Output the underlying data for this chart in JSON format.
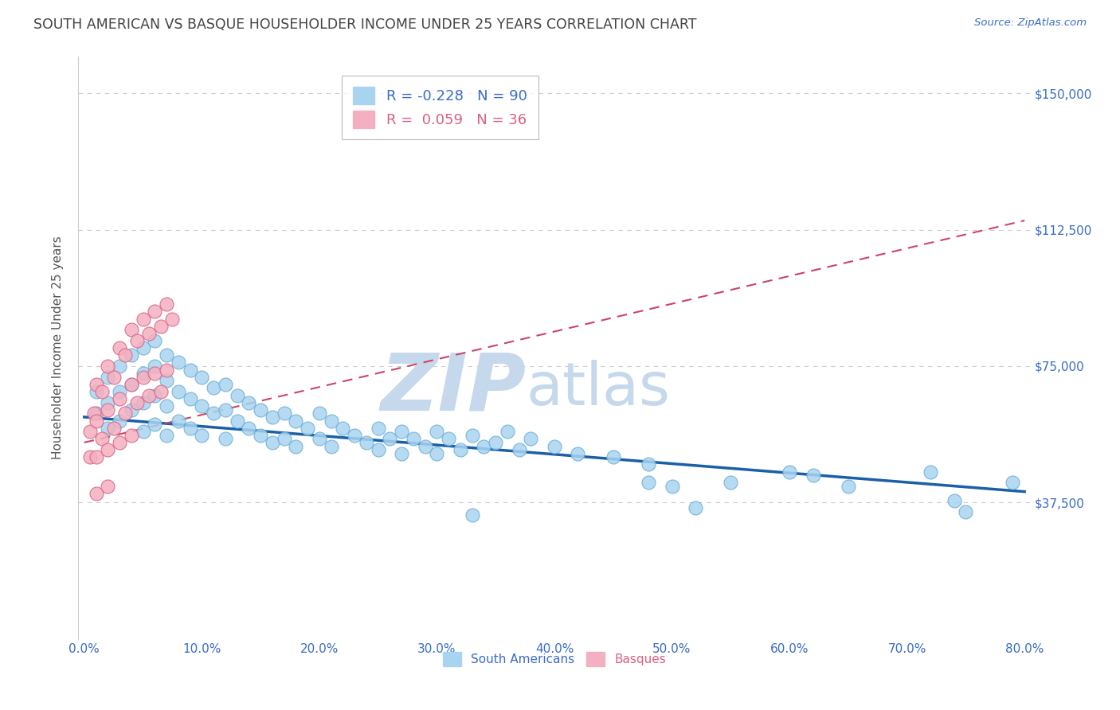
{
  "title": "SOUTH AMERICAN VS BASQUE HOUSEHOLDER INCOME UNDER 25 YEARS CORRELATION CHART",
  "source": "Source: ZipAtlas.com",
  "xlabel": "",
  "ylabel": "Householder Income Under 25 years",
  "xlim": [
    -0.005,
    0.805
  ],
  "ylim": [
    0,
    160000
  ],
  "yticks": [
    0,
    37500,
    75000,
    112500,
    150000
  ],
  "ytick_labels": [
    "",
    "$37,500",
    "$75,000",
    "$112,500",
    "$150,000"
  ],
  "xticks": [
    0.0,
    0.1,
    0.2,
    0.3,
    0.4,
    0.5,
    0.6,
    0.7,
    0.8
  ],
  "xtick_labels": [
    "0.0%",
    "10.0%",
    "20.0%",
    "30.0%",
    "40.0%",
    "50.0%",
    "60.0%",
    "70.0%",
    "80.0%"
  ],
  "south_american_color": "#a8d4f0",
  "south_american_edge": "#6aaed6",
  "basque_color": "#f4afc0",
  "basque_edge": "#d96080",
  "trend_sa_color": "#1a5fa8",
  "trend_basque_color": "#cc4466",
  "legend_sa_label": "R = -0.228   N = 90",
  "legend_basque_label": "R =  0.059   N = 36",
  "watermark": "ZIPatlas",
  "watermark_color": "#c5d8ec",
  "title_color": "#444444",
  "axis_label_color": "#555555",
  "tick_label_color": "#3a6cc8",
  "background_color": "#ffffff",
  "sa_trend_x0": 0.0,
  "sa_trend_y0": 61000,
  "sa_trend_x1": 0.8,
  "sa_trend_y1": 40500,
  "bq_trend_x0": 0.0,
  "bq_trend_y0": 54000,
  "bq_trend_x1": 0.8,
  "bq_trend_y1": 115000,
  "south_american_x": [
    0.01,
    0.01,
    0.02,
    0.02,
    0.02,
    0.03,
    0.03,
    0.03,
    0.04,
    0.04,
    0.04,
    0.05,
    0.05,
    0.05,
    0.05,
    0.06,
    0.06,
    0.06,
    0.06,
    0.07,
    0.07,
    0.07,
    0.07,
    0.08,
    0.08,
    0.08,
    0.09,
    0.09,
    0.09,
    0.1,
    0.1,
    0.1,
    0.11,
    0.11,
    0.12,
    0.12,
    0.12,
    0.13,
    0.13,
    0.14,
    0.14,
    0.15,
    0.15,
    0.16,
    0.16,
    0.17,
    0.17,
    0.18,
    0.18,
    0.19,
    0.2,
    0.2,
    0.21,
    0.21,
    0.22,
    0.23,
    0.24,
    0.25,
    0.25,
    0.26,
    0.27,
    0.27,
    0.28,
    0.29,
    0.3,
    0.3,
    0.31,
    0.32,
    0.33,
    0.34,
    0.35,
    0.36,
    0.37,
    0.38,
    0.4,
    0.42,
    0.45,
    0.48,
    0.5,
    0.52,
    0.55,
    0.6,
    0.62,
    0.65,
    0.72,
    0.74,
    0.75,
    0.79,
    0.48,
    0.33
  ],
  "south_american_y": [
    68000,
    62000,
    72000,
    65000,
    58000,
    75000,
    68000,
    60000,
    78000,
    70000,
    63000,
    80000,
    73000,
    65000,
    57000,
    82000,
    75000,
    67000,
    59000,
    78000,
    71000,
    64000,
    56000,
    76000,
    68000,
    60000,
    74000,
    66000,
    58000,
    72000,
    64000,
    56000,
    69000,
    62000,
    70000,
    63000,
    55000,
    67000,
    60000,
    65000,
    58000,
    63000,
    56000,
    61000,
    54000,
    62000,
    55000,
    60000,
    53000,
    58000,
    62000,
    55000,
    60000,
    53000,
    58000,
    56000,
    54000,
    58000,
    52000,
    55000,
    57000,
    51000,
    55000,
    53000,
    57000,
    51000,
    55000,
    52000,
    56000,
    53000,
    54000,
    57000,
    52000,
    55000,
    53000,
    51000,
    50000,
    48000,
    42000,
    36000,
    43000,
    46000,
    45000,
    42000,
    46000,
    38000,
    35000,
    43000,
    43000,
    34000
  ],
  "basque_x": [
    0.005,
    0.005,
    0.008,
    0.01,
    0.01,
    0.01,
    0.01,
    0.015,
    0.015,
    0.02,
    0.02,
    0.02,
    0.02,
    0.025,
    0.025,
    0.03,
    0.03,
    0.03,
    0.035,
    0.035,
    0.04,
    0.04,
    0.04,
    0.045,
    0.045,
    0.05,
    0.05,
    0.055,
    0.055,
    0.06,
    0.06,
    0.065,
    0.065,
    0.07,
    0.07,
    0.075
  ],
  "basque_y": [
    57000,
    50000,
    62000,
    70000,
    60000,
    50000,
    40000,
    68000,
    55000,
    75000,
    63000,
    52000,
    42000,
    72000,
    58000,
    80000,
    66000,
    54000,
    78000,
    62000,
    85000,
    70000,
    56000,
    82000,
    65000,
    88000,
    72000,
    84000,
    67000,
    90000,
    73000,
    86000,
    68000,
    92000,
    74000,
    88000
  ]
}
